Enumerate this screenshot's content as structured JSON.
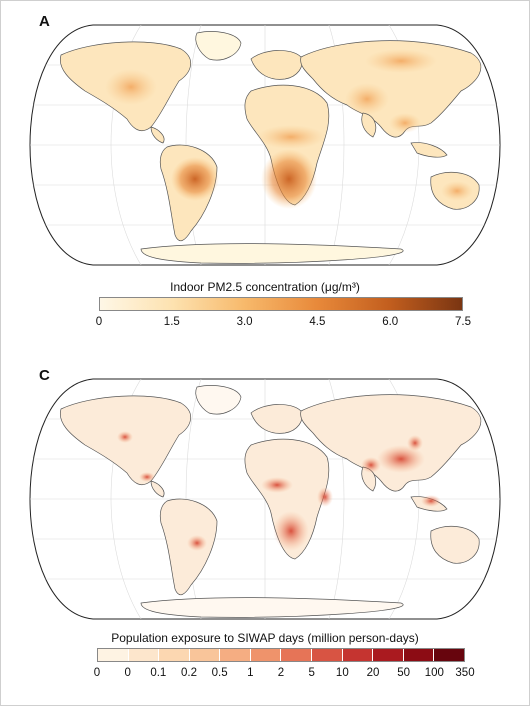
{
  "panel_a": {
    "letter": "A",
    "colorbar": {
      "title": "Indoor PM2.5 concentration (μg/m³)",
      "ticks": [
        "0",
        "1.5",
        "3.0",
        "4.5",
        "6.0",
        "7.5"
      ],
      "range": [
        0,
        7.5
      ],
      "colors": [
        "#fef7e6",
        "#fde2b0",
        "#f7b96b",
        "#e8893a",
        "#c25e1e",
        "#7a3512"
      ]
    },
    "land_color": "#fde6bd",
    "hotspot_color": "#d9732a"
  },
  "panel_c": {
    "letter": "C",
    "colorbar": {
      "title": "Population exposure to SIWAP days (million person-days)",
      "ticks": [
        "0",
        "0",
        "0.1",
        "0.2",
        "0.5",
        "1",
        "2",
        "5",
        "10",
        "20",
        "50",
        "100",
        "350"
      ],
      "colors": [
        "#fef3e3",
        "#fde6cc",
        "#fcd7b1",
        "#f9c59a",
        "#f5ad82",
        "#ef936b",
        "#e67457",
        "#d85443",
        "#c53430",
        "#aa1a1f",
        "#8c0c14",
        "#67050d"
      ]
    },
    "land_color": "#fcebd9",
    "hotspot_color": "#e0452c"
  }
}
